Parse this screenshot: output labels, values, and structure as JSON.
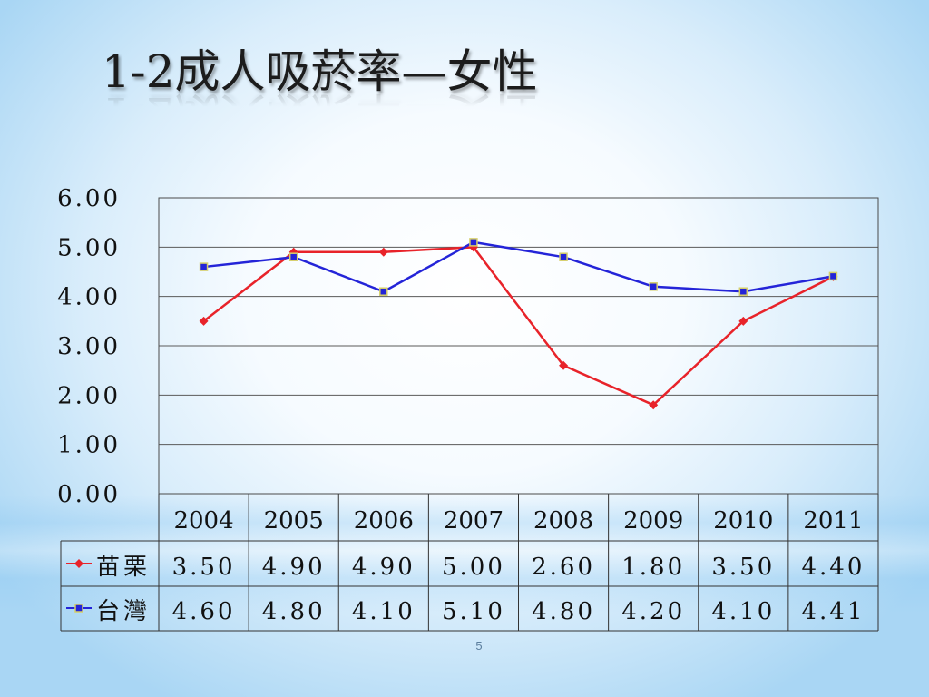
{
  "slide": {
    "title": "1-2成人吸菸率—女性",
    "page_number": "5"
  },
  "chart_data": {
    "type": "line",
    "categories": [
      "2004",
      "2005",
      "2006",
      "2007",
      "2008",
      "2009",
      "2010",
      "2011"
    ],
    "series": [
      {
        "name": "苗栗",
        "values": [
          3.5,
          4.9,
          4.9,
          5.0,
          2.6,
          1.8,
          3.5,
          4.4
        ],
        "color": "#E8232A",
        "marker": "diamond"
      },
      {
        "name": "台灣",
        "values": [
          4.6,
          4.8,
          4.1,
          5.1,
          4.8,
          4.2,
          4.1,
          4.41
        ],
        "color": "#2424D8",
        "marker": "square",
        "marker_edge": "#D6CF6A"
      }
    ],
    "ylim": [
      0,
      6
    ],
    "yticks": [
      "0.00",
      "1.00",
      "2.00",
      "3.00",
      "4.00",
      "5.00",
      "6.00"
    ],
    "value_decimals": 2,
    "grid": true,
    "data_table": true,
    "legend": "data-table-left"
  }
}
